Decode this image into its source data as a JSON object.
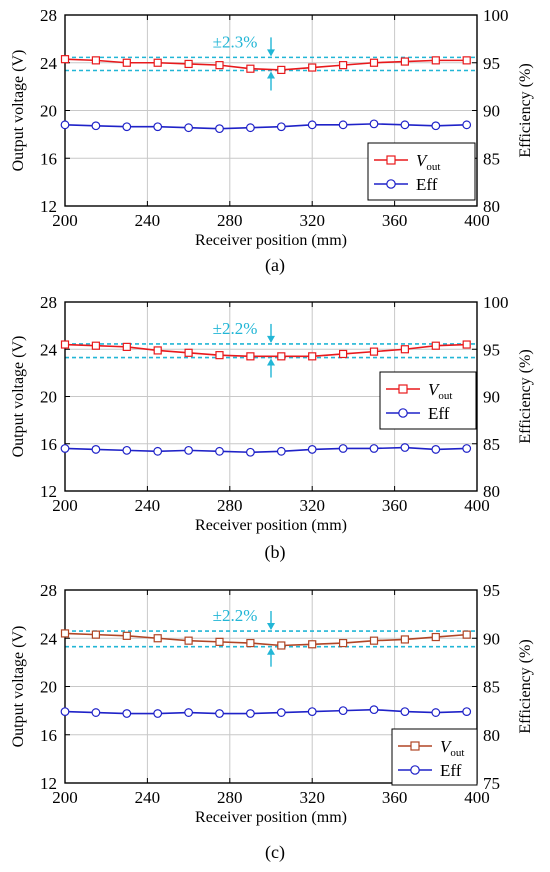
{
  "chart_data": [
    {
      "type": "line",
      "panel_label": "(a)",
      "xlabel": "Receiver position (mm)",
      "ylabel_left": "Output voltage (V)",
      "ylabel_right": "Efficiency (%)",
      "xlim": [
        200,
        400
      ],
      "xticks": [
        "200",
        "240",
        "280",
        "320",
        "360",
        "400"
      ],
      "ylim_left": [
        12,
        28
      ],
      "yticks_left": [
        "12",
        "16",
        "20",
        "24",
        "28"
      ],
      "ylim_right": [
        80,
        100
      ],
      "yticks_right": [
        "80",
        "85",
        "90",
        "95",
        "100"
      ],
      "grid": true,
      "legend_position": "bottom-right",
      "annotation": "±2.3%",
      "band": [
        23.35,
        24.45
      ],
      "x": [
        200,
        215,
        230,
        245,
        260,
        275,
        290,
        305,
        320,
        335,
        350,
        365,
        380,
        395
      ],
      "series": [
        {
          "name": "Vout",
          "axis": "left",
          "marker": "square",
          "color": "#e8191c",
          "values": [
            24.3,
            24.2,
            24.0,
            24.0,
            23.9,
            23.8,
            23.5,
            23.4,
            23.6,
            23.8,
            24.0,
            24.1,
            24.2,
            24.2
          ]
        },
        {
          "name": "Eff",
          "axis": "right",
          "marker": "circle",
          "color": "#1f22c8",
          "values": [
            88.5,
            88.4,
            88.3,
            88.3,
            88.2,
            88.1,
            88.2,
            88.3,
            88.5,
            88.5,
            88.6,
            88.5,
            88.4,
            88.5
          ]
        }
      ]
    },
    {
      "type": "line",
      "panel_label": "(b)",
      "xlabel": "Receiver position (mm)",
      "ylabel_left": "Output voltage (V)",
      "ylabel_right": "Efficiency (%)",
      "xlim": [
        200,
        400
      ],
      "xticks": [
        "200",
        "240",
        "280",
        "320",
        "360",
        "400"
      ],
      "ylim_left": [
        12,
        28
      ],
      "yticks_left": [
        "12",
        "16",
        "20",
        "24",
        "28"
      ],
      "ylim_right": [
        80,
        100
      ],
      "yticks_right": [
        "80",
        "85",
        "90",
        "95",
        "100"
      ],
      "grid": true,
      "legend_position": "right",
      "annotation": "±2.2%",
      "band": [
        23.3,
        24.45
      ],
      "x": [
        200,
        215,
        230,
        245,
        260,
        275,
        290,
        305,
        320,
        335,
        350,
        365,
        380,
        395
      ],
      "series": [
        {
          "name": "Vout",
          "axis": "left",
          "marker": "square",
          "color": "#e8191c",
          "values": [
            24.4,
            24.3,
            24.2,
            23.9,
            23.7,
            23.5,
            23.4,
            23.4,
            23.4,
            23.6,
            23.8,
            24.0,
            24.3,
            24.4
          ]
        },
        {
          "name": "Eff",
          "axis": "right",
          "marker": "circle",
          "color": "#1f22c8",
          "values": [
            84.5,
            84.4,
            84.3,
            84.2,
            84.3,
            84.2,
            84.1,
            84.2,
            84.4,
            84.5,
            84.5,
            84.6,
            84.4,
            84.5
          ]
        }
      ]
    },
    {
      "type": "line",
      "panel_label": "(c)",
      "xlabel": "Receiver position (mm)",
      "ylabel_left": "Output voltage (V)",
      "ylabel_right": "Efficiency (%)",
      "xlim": [
        200,
        400
      ],
      "xticks": [
        "200",
        "240",
        "280",
        "320",
        "360",
        "400"
      ],
      "ylim_left": [
        12,
        28
      ],
      "yticks_left": [
        "12",
        "16",
        "20",
        "24",
        "28"
      ],
      "ylim_right": [
        75,
        95
      ],
      "yticks_right": [
        "75",
        "80",
        "85",
        "90",
        "95"
      ],
      "grid": true,
      "legend_position": "bottom-right",
      "annotation": "±2.2%",
      "band": [
        23.3,
        24.6
      ],
      "x": [
        200,
        215,
        230,
        245,
        260,
        275,
        290,
        305,
        320,
        335,
        350,
        365,
        380,
        395
      ],
      "series": [
        {
          "name": "Vout",
          "axis": "left",
          "marker": "square",
          "color": "#b04525",
          "values": [
            24.4,
            24.3,
            24.2,
            24.0,
            23.8,
            23.7,
            23.6,
            23.4,
            23.5,
            23.6,
            23.8,
            23.9,
            24.1,
            24.3
          ]
        },
        {
          "name": "Eff",
          "axis": "right",
          "marker": "circle",
          "color": "#1f22c8",
          "values": [
            82.4,
            82.3,
            82.2,
            82.2,
            82.3,
            82.2,
            82.2,
            82.3,
            82.4,
            82.5,
            82.6,
            82.4,
            82.3,
            82.4
          ]
        }
      ]
    }
  ],
  "colors": {
    "band_line": "#22b6d6",
    "grid": "#c8c8c8",
    "axis": "#000000"
  }
}
